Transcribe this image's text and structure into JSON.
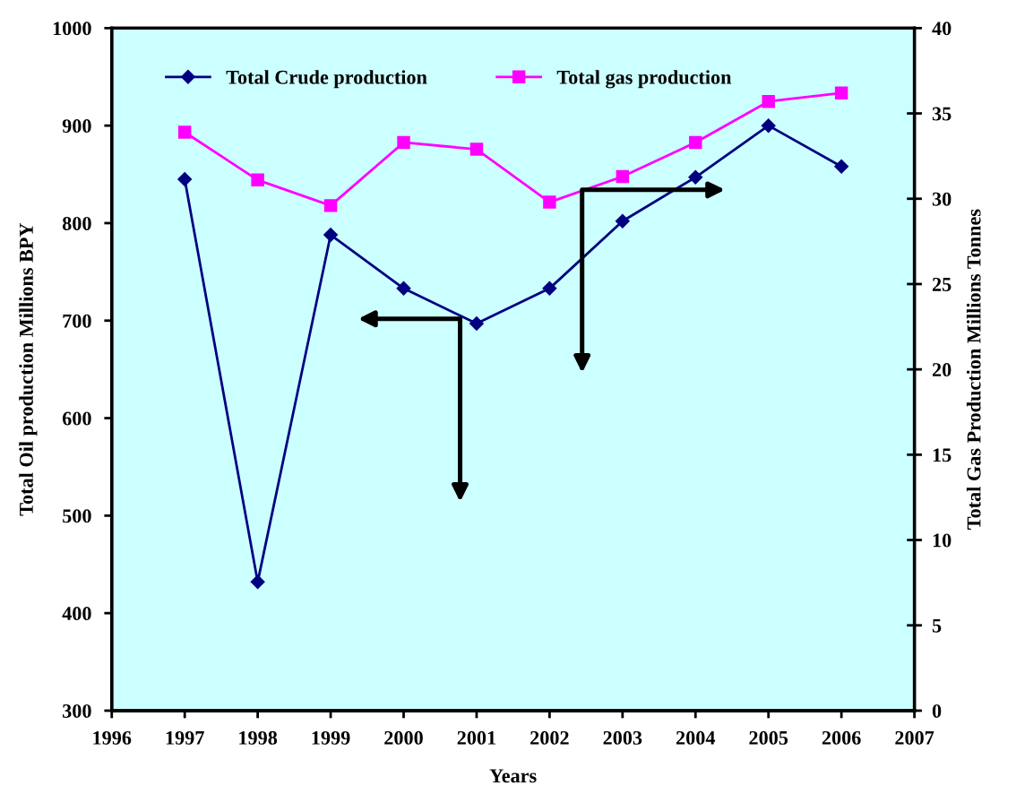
{
  "chart_data": {
    "type": "line",
    "xlabel": "Years",
    "ylabel": "Total Oil production Millions BPY",
    "y2label": "Total Gas Production Millions Tonnes",
    "x": [
      1997,
      1998,
      1999,
      2000,
      2001,
      2002,
      2003,
      2004,
      2005,
      2006
    ],
    "series": [
      {
        "name": "Total Crude production",
        "color": "#000080",
        "marker": "diamond",
        "values": [
          845,
          432,
          788,
          733,
          697,
          733,
          802,
          847,
          900,
          858
        ]
      },
      {
        "name": "Total gas production",
        "color": "#ff00ff",
        "marker": "square",
        "axis": "y2",
        "values": [
          33.9,
          31.1,
          29.6,
          33.3,
          32.9,
          29.8,
          31.3,
          33.3,
          35.7,
          36.2
        ]
      }
    ],
    "xlim": [
      1996,
      2007
    ],
    "xticks": [
      1996,
      1997,
      1998,
      1999,
      2000,
      2001,
      2002,
      2003,
      2004,
      2005,
      2006,
      2007
    ],
    "ylim": [
      300,
      1000
    ],
    "yticks": [
      300,
      400,
      500,
      600,
      700,
      800,
      900,
      1000
    ],
    "y2lim": [
      0,
      40
    ],
    "y2ticks": [
      0,
      5,
      10,
      15,
      20,
      25,
      30,
      35,
      40
    ],
    "legend": "top",
    "grid": false,
    "line_style": "solid"
  }
}
